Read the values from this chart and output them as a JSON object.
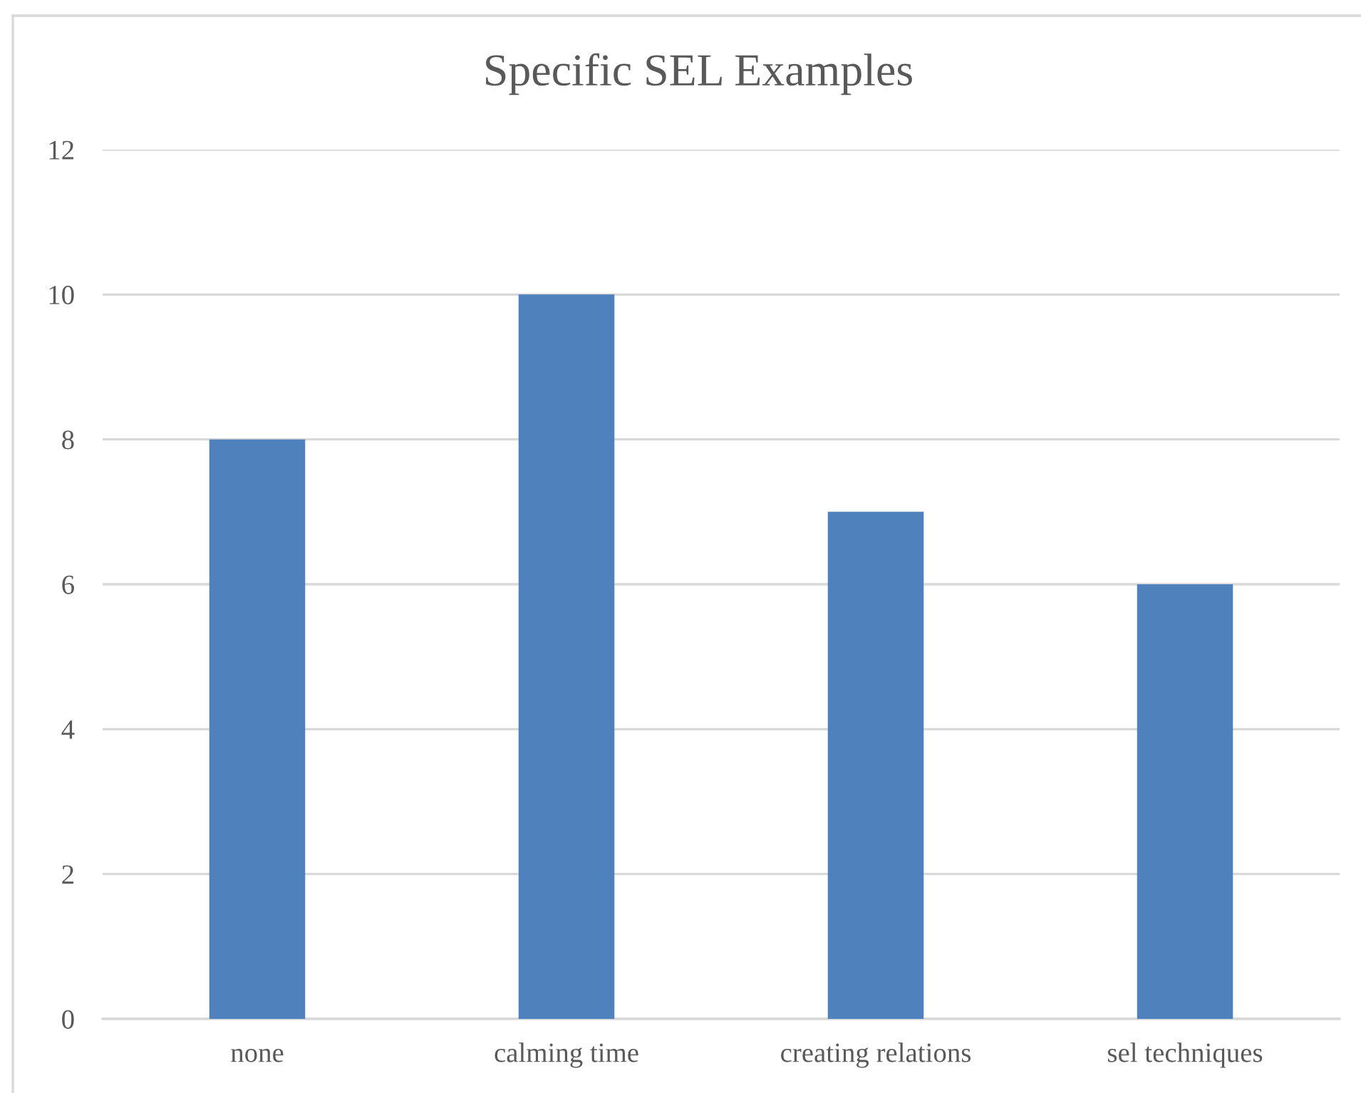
{
  "chart_data": {
    "type": "bar",
    "title": "Specific SEL Examples",
    "categories": [
      "none",
      "calming time",
      "creating relations",
      "sel techniques"
    ],
    "values": [
      8,
      10,
      7,
      6
    ],
    "color": "#4f81bd",
    "ylim": [
      0,
      12
    ],
    "yticks": [
      0,
      2,
      4,
      6,
      8,
      10,
      12
    ],
    "grid": "y"
  }
}
